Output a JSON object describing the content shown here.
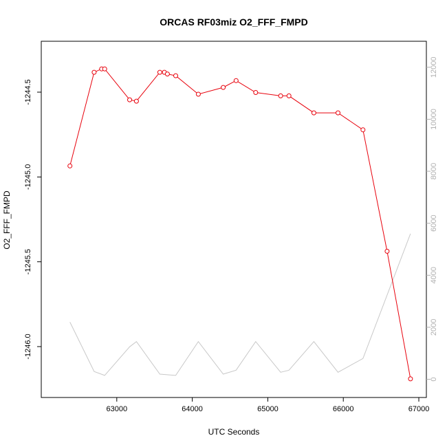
{
  "chart_data": {
    "type": "line",
    "title": "ORCAS RF03miz O2_FFF_FMPD",
    "xlabel": "UTC Seconds",
    "ylabel": "O2_FFF_FMPD",
    "ylabel_right": "",
    "xlim": [
      62000,
      67100
    ],
    "ylim": [
      -1246.3,
      -1244.2
    ],
    "ylim_right": [
      -700,
      13000
    ],
    "x_ticks": [
      {
        "value": 63000,
        "label": "63000"
      },
      {
        "value": 64000,
        "label": "64000"
      },
      {
        "value": 65000,
        "label": "65000"
      },
      {
        "value": 66000,
        "label": "66000"
      },
      {
        "value": 67000,
        "label": "67000"
      }
    ],
    "y_ticks": [
      {
        "value": -1244.5,
        "label": "-1244.5"
      },
      {
        "value": -1245.0,
        "label": "-1245.0"
      },
      {
        "value": -1245.5,
        "label": "-1245.5"
      },
      {
        "value": -1246.0,
        "label": "-1246.0"
      }
    ],
    "y_ticks_right": [
      {
        "value": 0,
        "label": "0"
      },
      {
        "value": 2000,
        "label": "2000"
      },
      {
        "value": 4000,
        "label": "4000"
      },
      {
        "value": 6000,
        "label": "6000"
      },
      {
        "value": 8000,
        "label": "8000"
      },
      {
        "value": 10000,
        "label": "10000"
      },
      {
        "value": 12000,
        "label": "12000"
      }
    ],
    "series": [
      {
        "axis": "left",
        "color": "#e8000b",
        "x": [
          62380,
          62700,
          62800,
          62840,
          63170,
          63260,
          63570,
          63630,
          63670,
          63780,
          64080,
          64410,
          64580,
          64840,
          65170,
          65280,
          65610,
          65930,
          66260,
          66580,
          66890
        ],
        "values": [
          -1244.935,
          -1244.383,
          -1244.363,
          -1244.363,
          -1244.545,
          -1244.553,
          -1244.383,
          -1244.383,
          -1244.393,
          -1244.403,
          -1244.512,
          -1244.472,
          -1244.432,
          -1244.502,
          -1244.522,
          -1244.522,
          -1244.622,
          -1244.622,
          -1244.722,
          -1245.438,
          -1246.19
        ]
      },
      {
        "axis": "right",
        "color": "#c8c8c8",
        "x": [
          62380,
          62700,
          62840,
          63170,
          63260,
          63570,
          63780,
          64080,
          64410,
          64580,
          64840,
          65170,
          65280,
          65610,
          65930,
          66260,
          66890
        ],
        "values": [
          2200,
          300,
          150,
          1250,
          1450,
          200,
          150,
          1450,
          200,
          350,
          1450,
          270,
          350,
          1450,
          270,
          800,
          5600
        ]
      }
    ],
    "grid": false,
    "legend": "none"
  }
}
